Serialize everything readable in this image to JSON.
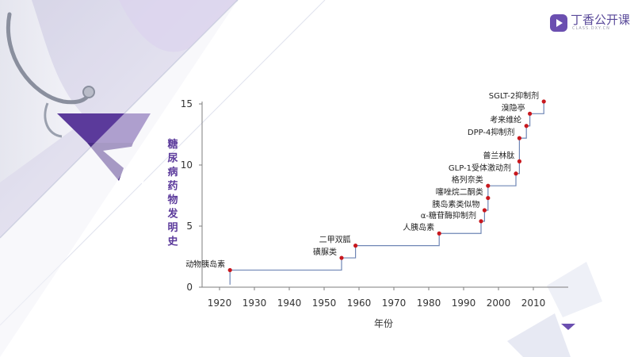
{
  "logo": {
    "brand": "丁香公开课",
    "sub": "CLASS.DXY.CN"
  },
  "chart_data": {
    "type": "scatter",
    "title": "",
    "xlabel": "年份",
    "ylabel": "糖尿病药物发明史",
    "xlim": [
      1915,
      2020
    ],
    "ylim": [
      0,
      15
    ],
    "xticks": [
      1920,
      1930,
      1940,
      1950,
      1960,
      1970,
      1980,
      1990,
      2000,
      2010
    ],
    "yticks": [
      0,
      5,
      10,
      15
    ],
    "grid": false,
    "step_line": true,
    "series": [
      {
        "points": [
          {
            "x": 1923,
            "y": 1.4,
            "label": "动物胰岛素"
          },
          {
            "x": 1955,
            "y": 2.4,
            "label": "磺脲类"
          },
          {
            "x": 1959,
            "y": 3.4,
            "label": "二甲双胍"
          },
          {
            "x": 1983,
            "y": 4.4,
            "label": "人胰岛素"
          },
          {
            "x": 1995,
            "y": 5.4,
            "label": "α-糖苷酶抑制剂"
          },
          {
            "x": 1996,
            "y": 6.3,
            "label": "胰岛素类似物"
          },
          {
            "x": 1997,
            "y": 7.3,
            "label": "噻唑烷二酮类"
          },
          {
            "x": 1997,
            "y": 8.3,
            "label": "格列奈类"
          },
          {
            "x": 2005,
            "y": 9.3,
            "label": "GLP-1受体激动剂"
          },
          {
            "x": 2006,
            "y": 10.3,
            "label": "普兰林肽"
          },
          {
            "x": 2006,
            "y": 12.2,
            "label": "DPP-4抑制剂"
          },
          {
            "x": 2008,
            "y": 13.2,
            "label": "考来维纶"
          },
          {
            "x": 2009,
            "y": 14.2,
            "label": "溴隐亭"
          },
          {
            "x": 2013,
            "y": 15.2,
            "label": "SGLT-2抑制剂"
          }
        ]
      }
    ],
    "colors": {
      "point": "#c8181e",
      "line": "#6f86b5",
      "axis": "#7d7d7d",
      "accent": "#5b3a9b"
    }
  }
}
